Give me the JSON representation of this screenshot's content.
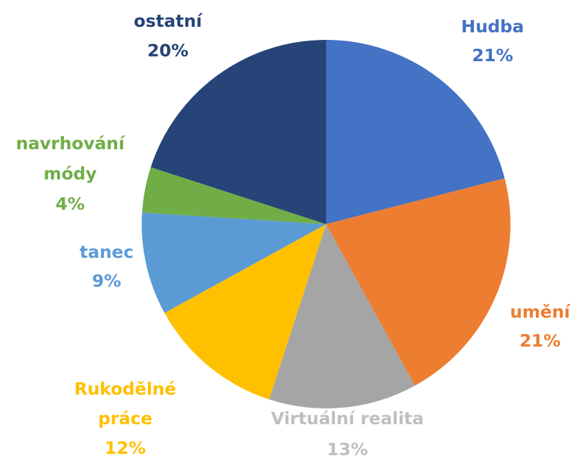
{
  "chart_data": {
    "type": "pie",
    "categories": [
      "Hudba",
      "umění",
      "Virtuální realita",
      "Rukodělné práce",
      "tanec",
      "navrhování módy",
      "ostatní"
    ],
    "values": [
      21,
      21,
      13,
      12,
      9,
      4,
      20
    ],
    "value_labels": [
      "21%",
      "21%",
      "13%",
      "12%",
      "9%",
      "4%",
      "20%"
    ],
    "colors": [
      "#4472c4",
      "#ed7d31",
      "#a5a5a5",
      "#ffc000",
      "#5b9bd5",
      "#70ad47",
      "#264478"
    ]
  }
}
